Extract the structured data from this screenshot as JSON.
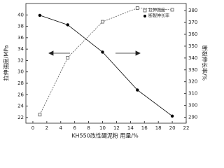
{
  "chart_data": {
    "type": "line",
    "x_label": "KH550改性硼泥粉 用量/%",
    "y_label": "拉伸强度/MPa",
    "y2_label": "断裂伸长率/%",
    "x": [
      1,
      5,
      10,
      15,
      20
    ],
    "series": [
      {
        "name": "拉伸强度",
        "color": "#555555",
        "marker": "square",
        "values": [
          22.5,
          32.5,
          38.8,
          41.2,
          40.9
        ]
      },
      {
        "name": "断裂伸长率",
        "color": "#000000",
        "marker": "circle",
        "axis": "y2",
        "values": [
          376,
          368,
          345,
          313,
          291
        ]
      }
    ],
    "xlim": [
      -1,
      22
    ],
    "xticks": [
      0,
      2,
      4,
      6,
      8,
      10,
      12,
      14,
      16,
      18,
      20,
      22
    ],
    "ylim": [
      21,
      42
    ],
    "yticks": [
      22,
      24,
      26,
      28,
      30,
      32,
      34,
      36,
      38,
      40
    ],
    "y2lim": [
      285,
      386
    ],
    "y2ticks": [
      290,
      300,
      310,
      320,
      330,
      340,
      350,
      360,
      370,
      380
    ],
    "legend": "upper right"
  }
}
